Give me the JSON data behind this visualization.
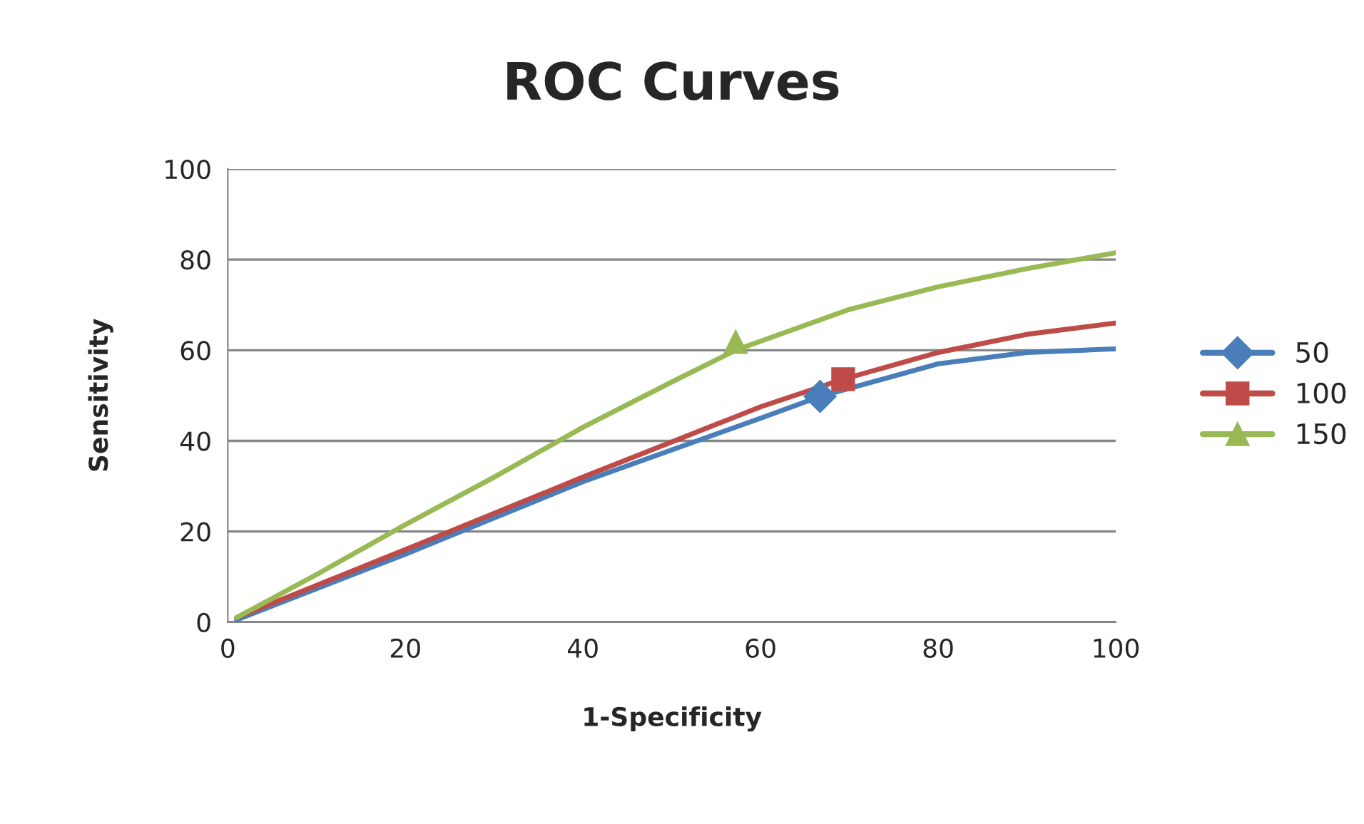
{
  "chart_data": {
    "type": "line",
    "title": "ROC Curves",
    "xlabel": "1-Specificity",
    "ylabel": "Sensitivity",
    "series": [
      {
        "color": "#4a7ebb",
        "x": [
          1,
          20,
          40,
          60,
          66.7,
          80,
          90,
          100
        ],
        "values": [
          0.5,
          15,
          31,
          45,
          49.8,
          57,
          59.5,
          60.3
        ]
      },
      {
        "color": "#be4b48",
        "x": [
          1,
          20,
          40,
          60,
          69.3,
          80,
          90,
          100
        ],
        "values": [
          1,
          16,
          32,
          47.5,
          53.6,
          59.5,
          63.5,
          66
        ]
      },
      {
        "color": "#98b954",
        "x": [
          1,
          10,
          20,
          30,
          40,
          50,
          57.2,
          70,
          80,
          90,
          100
        ],
        "values": [
          1,
          10.5,
          21.5,
          32,
          43,
          53,
          60,
          69,
          74,
          78,
          81.5
        ]
      },
      {
        "name": "50",
        "type": "scatter",
        "color": "#4a7ebb",
        "marker": "diamond",
        "x": [
          66.7
        ],
        "values": [
          49.8
        ]
      },
      {
        "name": "100",
        "type": "scatter",
        "color": "#be4b48",
        "marker": "square",
        "x": [
          69.3
        ],
        "values": [
          53.6
        ]
      },
      {
        "name": "150",
        "type": "scatter",
        "color": "#98b954",
        "marker": "triangle",
        "x": [
          57.2
        ],
        "values": [
          61.8
        ]
      }
    ],
    "xlim": [
      0,
      100
    ],
    "ylim": [
      0,
      100
    ],
    "xticks": [
      0,
      20,
      40,
      60,
      80,
      100
    ],
    "yticks": [
      0,
      20,
      40,
      60,
      80,
      100
    ],
    "grid": "y",
    "legend": "right",
    "line_style": "solid"
  }
}
